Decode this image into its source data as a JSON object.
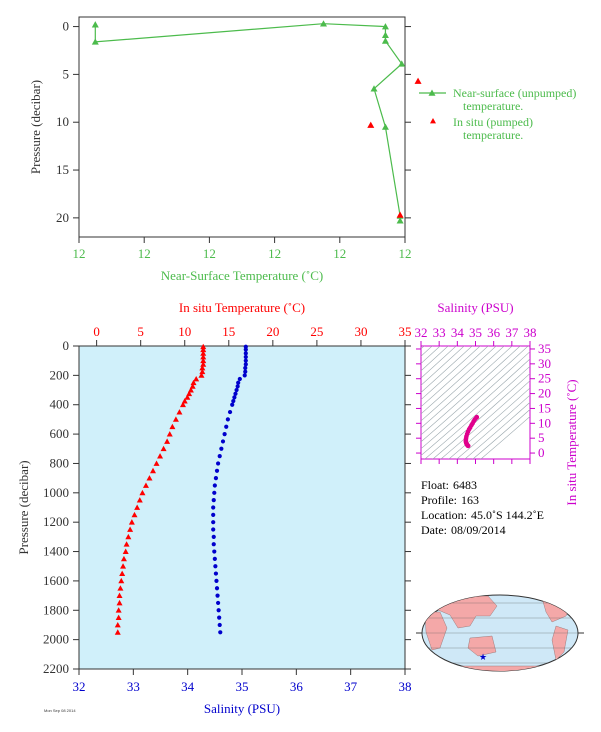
{
  "colors": {
    "green": "#4cbb4c",
    "red": "#ff0000",
    "blue": "#0000cc",
    "magenta": "#cc00cc",
    "panel_bg": "#d0f0fa",
    "axis_dark": "#333333",
    "land": "#f4a8a8",
    "ocean": "#cfe8f7"
  },
  "chart_data": [
    {
      "type": "line",
      "panel": "near-surface",
      "xlabel": "Near-Surface Temperature (˚C)",
      "ylabel": "Pressure (decibar)",
      "x_tick_labels": [
        "12",
        "12",
        "12",
        "12",
        "12",
        "12"
      ],
      "y_ticks": [
        0,
        5,
        10,
        15,
        20
      ],
      "xlim": [
        11.9,
        12.1
      ],
      "ylim": [
        22,
        -1
      ],
      "legend_position": "right",
      "series": [
        {
          "name": "Near-surface (unpumped) temperature.",
          "marker": "triangle-line",
          "color": "green",
          "x": [
            11.91,
            11.91,
            12.05,
            12.088,
            12.088,
            12.088,
            12.098,
            12.081,
            12.088,
            12.097,
            12.097
          ],
          "y": [
            -0.2,
            1.6,
            -0.3,
            0.0,
            0.9,
            1.5,
            3.9,
            6.5,
            10.5,
            19.8,
            20.3
          ]
        },
        {
          "name": "In situ (pumped) temperature.",
          "marker": "triangle",
          "color": "red",
          "x": [
            12.108,
            12.079,
            12.097
          ],
          "y": [
            5.7,
            10.3,
            19.7
          ]
        }
      ]
    },
    {
      "type": "scatter",
      "panel": "profile",
      "ylabel": "Pressure (decibar)",
      "top_axis": {
        "label": "In situ Temperature (˚C)",
        "ticks": [
          0,
          5,
          10,
          15,
          20,
          25,
          30,
          35
        ],
        "range": [
          -2,
          35
        ]
      },
      "bottom_axis": {
        "label": "Salinity (PSU)",
        "ticks": [
          32,
          33,
          34,
          35,
          36,
          37,
          38
        ],
        "range": [
          32,
          38
        ]
      },
      "y_ticks": [
        0,
        200,
        400,
        600,
        800,
        1000,
        1200,
        1400,
        1600,
        1800,
        2000,
        2200
      ],
      "ylim": [
        2200,
        0
      ],
      "series": [
        {
          "name": "In situ Temperature (˚C)",
          "color": "red",
          "marker": "triangle",
          "pressure": [
            5,
            25,
            50,
            75,
            100,
            125,
            150,
            175,
            200,
            225,
            250,
            275,
            300,
            325,
            350,
            375,
            400,
            450,
            500,
            550,
            600,
            650,
            700,
            750,
            800,
            850,
            900,
            950,
            1000,
            1050,
            1100,
            1150,
            1200,
            1250,
            1300,
            1350,
            1400,
            1450,
            1500,
            1550,
            1600,
            1650,
            1700,
            1750,
            1800,
            1850,
            1900,
            1950
          ],
          "temperature": [
            12.1,
            12.1,
            12.1,
            12.1,
            12.1,
            12.1,
            12.0,
            12.0,
            11.9,
            11.3,
            11.0,
            10.9,
            10.7,
            10.5,
            10.3,
            10.0,
            9.8,
            9.4,
            9.0,
            8.6,
            8.3,
            8.0,
            7.6,
            7.2,
            6.8,
            6.4,
            6.0,
            5.6,
            5.2,
            4.9,
            4.6,
            4.3,
            4.0,
            3.8,
            3.6,
            3.4,
            3.3,
            3.1,
            3.0,
            2.9,
            2.8,
            2.7,
            2.6,
            2.6,
            2.5,
            2.5,
            2.4,
            2.4
          ]
        },
        {
          "name": "Salinity (PSU)",
          "color": "blue",
          "marker": "dot",
          "pressure": [
            5,
            25,
            50,
            75,
            100,
            125,
            150,
            175,
            200,
            225,
            250,
            275,
            300,
            325,
            350,
            375,
            400,
            450,
            500,
            550,
            600,
            650,
            700,
            750,
            800,
            850,
            900,
            950,
            1000,
            1050,
            1100,
            1150,
            1200,
            1250,
            1300,
            1350,
            1400,
            1450,
            1500,
            1550,
            1600,
            1650,
            1700,
            1750,
            1800,
            1850,
            1900,
            1950
          ],
          "salinity": [
            35.07,
            35.07,
            35.07,
            35.07,
            35.07,
            35.07,
            35.06,
            35.06,
            35.05,
            34.96,
            34.93,
            34.92,
            34.9,
            34.88,
            34.86,
            34.84,
            34.82,
            34.78,
            34.74,
            34.71,
            34.68,
            34.65,
            34.62,
            34.59,
            34.56,
            34.54,
            34.52,
            34.5,
            34.49,
            34.48,
            34.47,
            34.47,
            34.47,
            34.47,
            34.48,
            34.48,
            34.49,
            34.5,
            34.51,
            34.52,
            34.53,
            34.54,
            34.55,
            34.56,
            34.57,
            34.58,
            34.59,
            34.6
          ]
        }
      ]
    },
    {
      "type": "scatter",
      "panel": "t-s",
      "xlabel": "Salinity (PSU)",
      "ylabel": "In situ Temperature (˚C)",
      "x_ticks": [
        32,
        33,
        34,
        35,
        36,
        37,
        38
      ],
      "y_ticks": [
        0,
        5,
        10,
        15,
        20,
        25,
        30,
        35
      ],
      "xlim": [
        32,
        38
      ],
      "ylim": [
        -2,
        36
      ],
      "series": [
        {
          "color": "magenta",
          "salinity": [
            35.07,
            35.06,
            35.05,
            34.96,
            34.9,
            34.84,
            34.78,
            34.71,
            34.65,
            34.59,
            34.54,
            34.5,
            34.48,
            34.47,
            34.47,
            34.49,
            34.51,
            34.53,
            34.55,
            34.57,
            34.6
          ],
          "temperature": [
            12.1,
            12.0,
            11.9,
            11.3,
            10.7,
            10.0,
            9.4,
            8.6,
            8.0,
            7.2,
            6.4,
            5.6,
            4.9,
            4.3,
            3.8,
            3.4,
            3.1,
            2.9,
            2.7,
            2.5,
            2.4
          ]
        }
      ]
    }
  ],
  "info": {
    "float_label": "Float:",
    "float_value": "6483",
    "profile_label": "Profile:",
    "profile_value": "163",
    "location_label": "Location:",
    "location_value": "45.0˚S  144.2˚E",
    "date_label": "Date:",
    "date_value": "08/09/2014"
  },
  "map": {
    "marker_icon": "star",
    "marker_color": "blue"
  },
  "footer_text": "Mon Sep 08 2014"
}
